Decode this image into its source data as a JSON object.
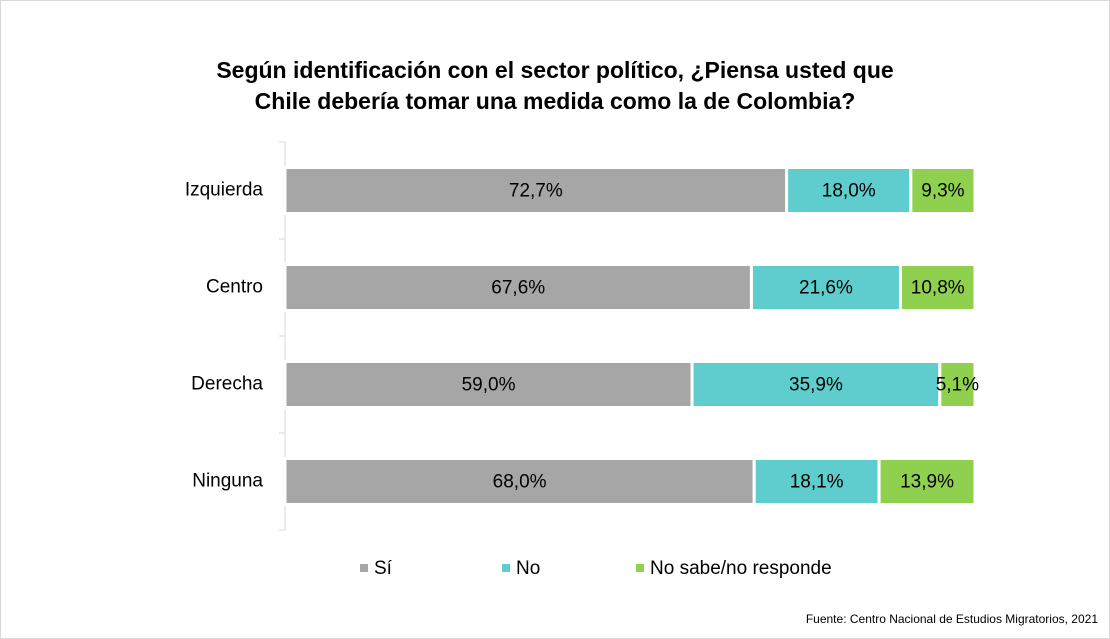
{
  "chart_data": {
    "type": "stacked-barh",
    "title": [
      "Según identificación con el sector político, ¿Piensa usted que",
      "Chile debería tomar una medida como la de Colombia?"
    ],
    "categories": [
      "Izquierda",
      "Centro",
      "Derecha",
      "Ninguna"
    ],
    "series": [
      {
        "name": "Sí",
        "color": "#a6a6a6",
        "values": [
          72.7,
          67.6,
          59.0,
          68.0
        ],
        "value_labels": [
          "72,7%",
          "67,6%",
          "59,0%",
          "68,0%"
        ]
      },
      {
        "name": "No",
        "color": "#5fcdcd",
        "values": [
          18.0,
          21.6,
          35.9,
          18.1
        ],
        "value_labels": [
          "18,0%",
          "21,6%",
          "35,9%",
          "18,1%"
        ]
      },
      {
        "name": "No sabe/no responde",
        "color": "#8fd14f",
        "values": [
          9.3,
          10.8,
          5.1,
          13.9
        ],
        "value_labels": [
          "9,3%",
          "10,8%",
          "5,1%",
          "13,9%"
        ]
      }
    ],
    "xlim": [
      0,
      100
    ],
    "source": "Fuente: Centro Nacional de Estudios Migratorios, 2021"
  }
}
